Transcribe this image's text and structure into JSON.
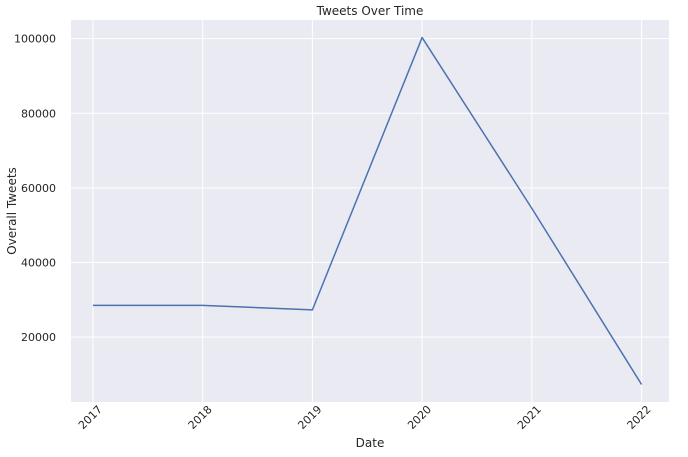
{
  "chart_data": {
    "type": "line",
    "title": "Tweets Over Time",
    "xlabel": "Date",
    "ylabel": "Overall Tweets",
    "x": [
      "2017",
      "2018",
      "2019",
      "2020",
      "2021",
      "2022"
    ],
    "series": [
      {
        "values": [
          28500,
          28500,
          27300,
          100300,
          54500,
          7300
        ]
      }
    ],
    "yticks": [
      20000,
      40000,
      60000,
      80000,
      100000
    ],
    "xticks": [
      "2017",
      "2018",
      "2019",
      "2020",
      "2021",
      "2022"
    ],
    "xlim": [
      2016.8,
      2022.25
    ],
    "ylim": [
      2600,
      105000
    ],
    "grid": true,
    "x_tick_rotation": -45,
    "colors": {
      "line": "#4c72b0",
      "plot_bg": "#eaeaf2",
      "grid": "#ffffff"
    }
  }
}
